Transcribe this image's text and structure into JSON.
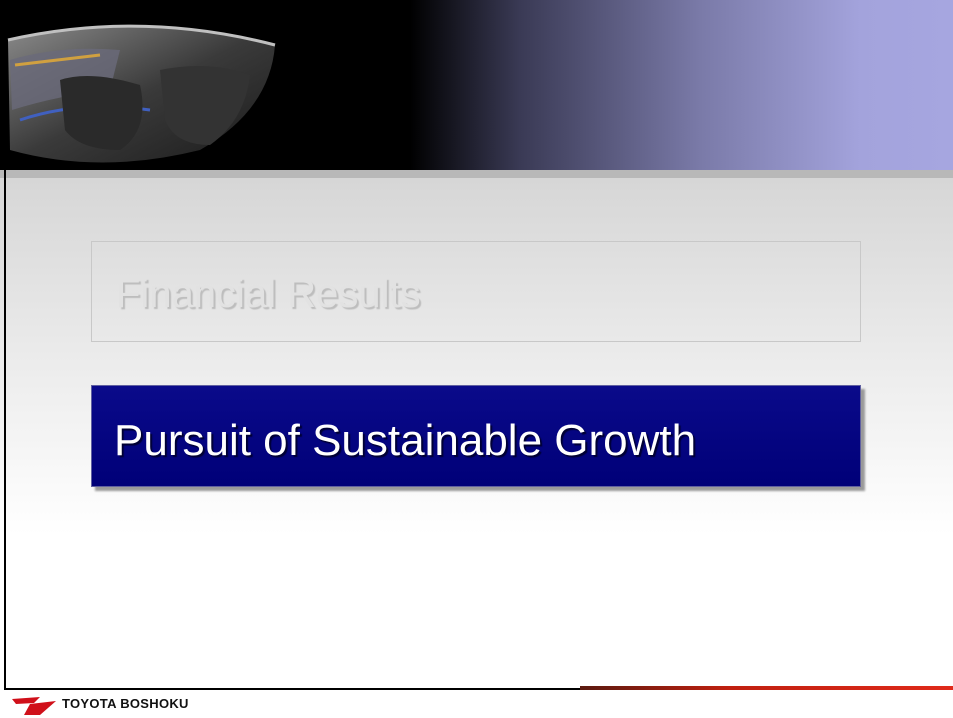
{
  "slide": {
    "sections": [
      "Financial Results",
      "Pursuit of Sustainable Growth"
    ],
    "footer": {
      "brand": "TOYOTA BOSHOKU"
    }
  }
}
